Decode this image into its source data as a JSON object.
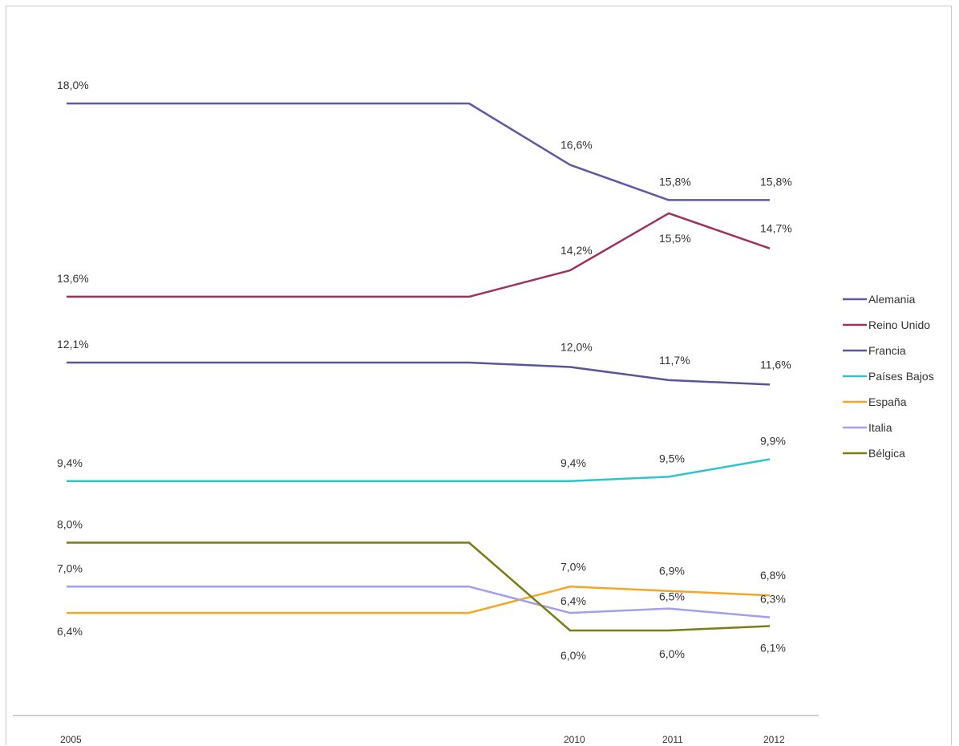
{
  "chart_data": {
    "type": "line",
    "title": "",
    "xlabel": "",
    "ylabel": "",
    "categories": [
      "2005",
      "",
      "2010",
      "2011",
      "2012"
    ],
    "ylim": [
      4.5,
      20.0
    ],
    "grid": false,
    "legend_position": "right",
    "series": [
      {
        "name": "Alemania",
        "color": "#5f5aa2",
        "values": [
          18.0,
          18.0,
          16.6,
          15.8,
          15.8
        ],
        "labels": [
          "18,0%",
          "",
          "16,6%",
          "15,8%",
          "15,8%"
        ]
      },
      {
        "name": "Reino Unido",
        "color": "#a0305e",
        "values": [
          13.6,
          13.6,
          14.2,
          15.5,
          14.7
        ],
        "labels": [
          "13,6%",
          "",
          "14,2%",
          "15,5%",
          "14,7%"
        ]
      },
      {
        "name": "Francia",
        "color": "#5a5597",
        "values": [
          12.1,
          12.1,
          12.0,
          11.7,
          11.6
        ],
        "labels": [
          "12,1%",
          "",
          "12,0%",
          "11,7%",
          "11,6%"
        ]
      },
      {
        "name": "Países Bajos",
        "color": "#2ec4cf",
        "values": [
          9.4,
          9.4,
          9.4,
          9.5,
          9.9
        ],
        "labels": [
          "9,4%",
          "",
          "9,4%",
          "9,5%",
          "9,9%"
        ]
      },
      {
        "name": "España",
        "color": "#f5a623",
        "values": [
          6.4,
          6.4,
          7.0,
          6.9,
          6.8
        ],
        "labels": [
          "6,4%",
          "",
          "7,0%",
          "6,9%",
          "6,8%"
        ]
      },
      {
        "name": "Italia",
        "color": "#a49ef0",
        "values": [
          7.0,
          7.0,
          6.4,
          6.5,
          6.3
        ],
        "labels": [
          "7,0%",
          "",
          "6,4%",
          "6,5%",
          "6,3%"
        ]
      },
      {
        "name": "Bélgica",
        "color": "#7a7d14",
        "values": [
          8.0,
          8.0,
          6.0,
          6.0,
          6.1
        ],
        "labels": [
          "8,0%",
          "",
          "6,0%",
          "6,0%",
          "6,1%"
        ]
      }
    ]
  }
}
